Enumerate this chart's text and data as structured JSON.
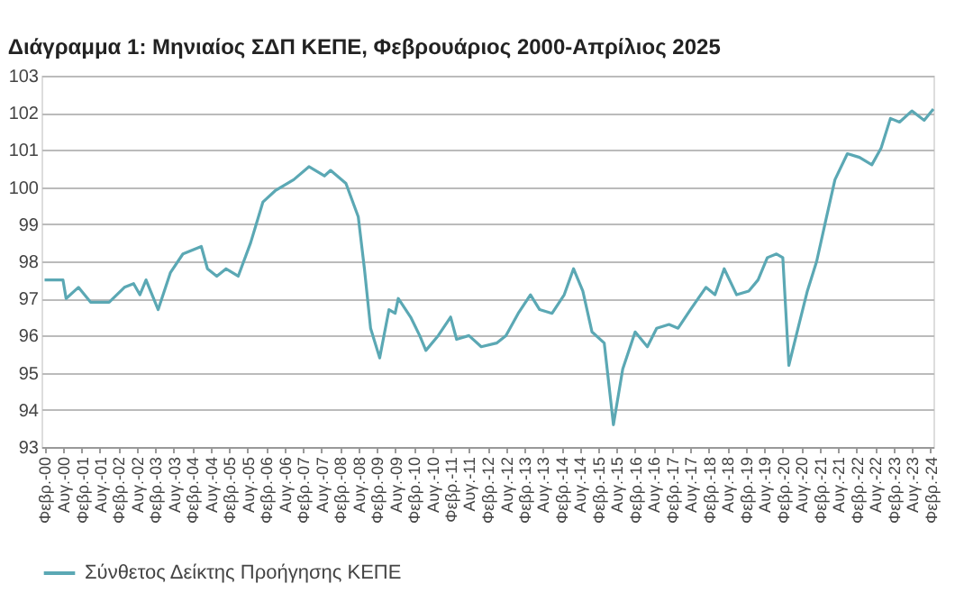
{
  "chart_data": {
    "type": "line",
    "title": "Διάγραμμα 1: Μηνιαίος ΣΔΠ ΚΕΠΕ, Φεβρουάριος 2000-Απρίλιος 2025",
    "x": [
      "2000-02",
      "2000-08",
      "2000-09",
      "2001-01",
      "2001-05",
      "2001-11",
      "2002-04",
      "2002-07",
      "2002-09",
      "2002-11",
      "2003-03",
      "2003-07",
      "2003-11",
      "2004-05",
      "2004-07",
      "2004-10",
      "2005-01",
      "2005-05",
      "2005-09",
      "2006-01",
      "2006-05",
      "2006-11",
      "2007-04",
      "2007-09",
      "2007-11",
      "2008-04",
      "2008-08",
      "2008-10",
      "2008-12",
      "2009-03",
      "2009-06",
      "2009-08",
      "2009-09",
      "2010-01",
      "2010-04",
      "2010-06",
      "2010-10",
      "2011-02",
      "2011-04",
      "2011-08",
      "2011-12",
      "2012-05",
      "2012-08",
      "2012-12",
      "2013-04",
      "2013-07",
      "2013-11",
      "2014-03",
      "2014-06",
      "2014-09",
      "2014-12",
      "2015-04",
      "2015-07",
      "2015-10",
      "2016-02",
      "2016-06",
      "2016-09",
      "2017-01",
      "2017-04",
      "2017-08",
      "2018-01",
      "2018-04",
      "2018-07",
      "2018-11",
      "2019-03",
      "2019-06",
      "2019-09",
      "2019-12",
      "2020-02",
      "2020-04",
      "2020-07",
      "2020-10",
      "2021-01",
      "2021-04",
      "2021-07",
      "2021-11",
      "2022-03",
      "2022-07",
      "2022-10",
      "2023-01",
      "2023-04",
      "2023-08",
      "2023-12",
      "2024-03"
    ],
    "series": [
      {
        "name": "Σύνθετος Δείκτης Προήγησης ΚΕΠΕ",
        "color": "#5ba8b4",
        "values": [
          97.5,
          97.5,
          97.0,
          97.3,
          96.9,
          96.9,
          97.3,
          97.4,
          97.1,
          97.5,
          96.7,
          97.7,
          98.2,
          98.4,
          97.8,
          97.6,
          97.8,
          97.6,
          98.5,
          99.6,
          99.9,
          100.2,
          100.55,
          100.3,
          100.45,
          100.1,
          99.2,
          97.8,
          96.2,
          95.4,
          96.7,
          96.6,
          97.0,
          96.5,
          96.0,
          95.6,
          96.0,
          96.5,
          95.9,
          96.0,
          95.7,
          95.8,
          96.0,
          96.6,
          97.1,
          96.7,
          96.6,
          97.1,
          97.8,
          97.2,
          96.1,
          95.8,
          93.6,
          95.1,
          96.1,
          95.7,
          96.2,
          96.3,
          96.2,
          96.7,
          97.3,
          97.1,
          97.8,
          97.1,
          97.2,
          97.5,
          98.1,
          98.2,
          98.1,
          95.2,
          96.2,
          97.2,
          98.0,
          99.1,
          100.2,
          100.9,
          100.8,
          100.6,
          101.05,
          101.85,
          101.75,
          102.05,
          101.8,
          102.1
        ]
      }
    ],
    "xlim": [
      "2000-01",
      "2024-03"
    ],
    "xticks": [
      {
        "value": "2000-02",
        "label": "Φεβρ.-00"
      },
      {
        "value": "2000-08",
        "label": "Αυγ.-00"
      },
      {
        "value": "2001-02",
        "label": "Φεβρ.-01"
      },
      {
        "value": "2001-08",
        "label": "Αυγ.-01"
      },
      {
        "value": "2002-02",
        "label": "Φεβρ.-02"
      },
      {
        "value": "2002-08",
        "label": "Αυγ.-02"
      },
      {
        "value": "2003-02",
        "label": "Φεβρ.-03"
      },
      {
        "value": "2003-08",
        "label": "Αυγ.-03"
      },
      {
        "value": "2004-02",
        "label": "Φεβρ.-04"
      },
      {
        "value": "2004-08",
        "label": "Αυγ.-04"
      },
      {
        "value": "2005-02",
        "label": "Φεβρ.-05"
      },
      {
        "value": "2005-08",
        "label": "Αυγ.-05"
      },
      {
        "value": "2006-02",
        "label": "Φεβρ.-06"
      },
      {
        "value": "2006-08",
        "label": "Αυγ.-06"
      },
      {
        "value": "2007-02",
        "label": "Φεβρ.-07"
      },
      {
        "value": "2007-08",
        "label": "Αυγ.-07"
      },
      {
        "value": "2008-02",
        "label": "Φεβρ.-08"
      },
      {
        "value": "2008-08",
        "label": "Αυγ.-08"
      },
      {
        "value": "2009-02",
        "label": "Φεβρ.-09"
      },
      {
        "value": "2009-08",
        "label": "Αυγ.-09"
      },
      {
        "value": "2010-02",
        "label": "Φεβρ.-10"
      },
      {
        "value": "2010-08",
        "label": "Αυγ.-10"
      },
      {
        "value": "2011-02",
        "label": "Φεβρ.-11"
      },
      {
        "value": "2011-08",
        "label": "Αυγ.-11"
      },
      {
        "value": "2012-02",
        "label": "Φεβρ.-12"
      },
      {
        "value": "2012-08",
        "label": "Αυγ.-12"
      },
      {
        "value": "2013-02",
        "label": "Φεβρ.-13"
      },
      {
        "value": "2013-08",
        "label": "Αυγ.-13"
      },
      {
        "value": "2014-02",
        "label": "Φεβρ.-14"
      },
      {
        "value": "2014-08",
        "label": "Αυγ.-14"
      },
      {
        "value": "2015-02",
        "label": "Φεβρ.-15"
      },
      {
        "value": "2015-08",
        "label": "Αυγ.-15"
      },
      {
        "value": "2016-02",
        "label": "Φεβρ.-16"
      },
      {
        "value": "2016-08",
        "label": "Αυγ.-16"
      },
      {
        "value": "2017-02",
        "label": "Φεβρ.-17"
      },
      {
        "value": "2017-08",
        "label": "Αυγ.-17"
      },
      {
        "value": "2018-02",
        "label": "Φεβρ.-18"
      },
      {
        "value": "2018-08",
        "label": "Αυγ.-18"
      },
      {
        "value": "2019-02",
        "label": "Φεβρ.-19"
      },
      {
        "value": "2019-08",
        "label": "Αυγ.-19"
      },
      {
        "value": "2020-02",
        "label": "Φεβρ.-20"
      },
      {
        "value": "2020-08",
        "label": "Αυγ.-20"
      },
      {
        "value": "2021-02",
        "label": "Φεβρ.-21"
      },
      {
        "value": "2021-08",
        "label": "Αυγ.-21"
      },
      {
        "value": "2022-02",
        "label": "Φεβρ.-22"
      },
      {
        "value": "2022-08",
        "label": "Αυγ.-22"
      },
      {
        "value": "2023-02",
        "label": "Φεβρ.-23"
      },
      {
        "value": "2023-08",
        "label": "Αυγ.-23"
      },
      {
        "value": "2024-02",
        "label": "Φεβρ.-24"
      }
    ],
    "ylim": [
      93,
      103
    ],
    "yticks": [
      93,
      94,
      95,
      96,
      97,
      98,
      99,
      100,
      101,
      102,
      103
    ],
    "grid": "y",
    "legend": "bottom",
    "marker": "none",
    "line_style": "solid"
  }
}
